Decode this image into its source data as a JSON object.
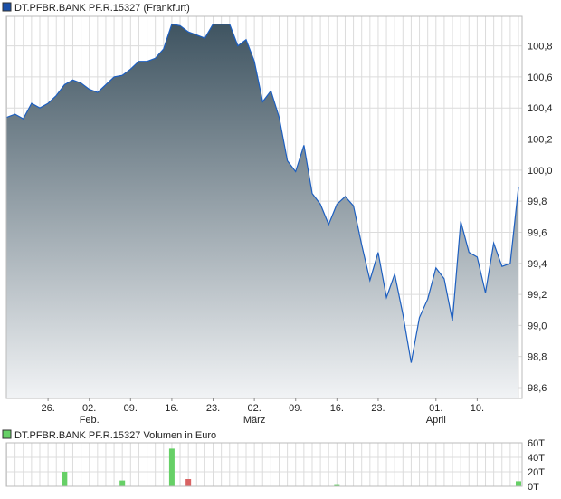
{
  "chart_data": [
    {
      "type": "area",
      "title": "DT.PFBR.BANK PF.R.15327 (Frankfurt)",
      "legend_color": "#1a4fa8",
      "line_color": "#1d5fc0",
      "fill_gradient": [
        "#3f5461",
        "#f1f3f5"
      ],
      "grid": true,
      "legend_placement": "top-left",
      "y_axis_side": "right",
      "ylim": [
        98.53,
        100.99
      ],
      "y_ticks": [
        "98,6",
        "98,8",
        "99,0",
        "99,2",
        "99,4",
        "99,6",
        "99,8",
        "100,0",
        "100,2",
        "100,4",
        "100,6",
        "100,8"
      ],
      "y_tick_values": [
        98.6,
        98.8,
        99.0,
        99.2,
        99.4,
        99.6,
        99.8,
        100.0,
        100.2,
        100.4,
        100.6,
        100.8
      ],
      "x_ticks": [
        {
          "label": "26.",
          "index": 5
        },
        {
          "label": "02.",
          "index": 10,
          "month": "Feb."
        },
        {
          "label": "09.",
          "index": 15
        },
        {
          "label": "16.",
          "index": 20
        },
        {
          "label": "23.",
          "index": 25
        },
        {
          "label": "02.",
          "index": 30,
          "month": "März"
        },
        {
          "label": "09.",
          "index": 35
        },
        {
          "label": "16.",
          "index": 40
        },
        {
          "label": "23.",
          "index": 45
        },
        {
          "label": "01.",
          "index": 52,
          "month": "April"
        },
        {
          "label": "10.",
          "index": 57
        }
      ],
      "values": [
        100.34,
        100.36,
        100.33,
        100.43,
        100.4,
        100.43,
        100.48,
        100.55,
        100.58,
        100.56,
        100.52,
        100.5,
        100.55,
        100.6,
        100.61,
        100.65,
        100.7,
        100.7,
        100.72,
        100.78,
        100.94,
        100.93,
        100.89,
        100.87,
        100.85,
        100.94,
        100.94,
        100.94,
        100.8,
        100.84,
        100.7,
        100.44,
        100.51,
        100.34,
        100.06,
        99.99,
        100.16,
        99.85,
        99.78,
        99.65,
        99.78,
        99.83,
        99.77,
        99.52,
        99.29,
        99.47,
        99.18,
        99.33,
        99.07,
        98.76,
        99.05,
        99.17,
        99.37,
        99.3,
        99.03,
        99.67,
        99.47,
        99.44,
        99.21,
        99.53,
        99.38,
        99.4,
        99.89
      ]
    },
    {
      "type": "bar",
      "title": "DT.PFBR.BANK PF.R.15327 Volumen in Euro",
      "legend_color": "#66d066",
      "ylim": [
        0,
        60
      ],
      "y_ticks": [
        "0T",
        "20T",
        "40T",
        "60T"
      ],
      "y_tick_values": [
        0,
        20,
        40,
        60
      ],
      "up_color": "#66d066",
      "down_color": "#d96363",
      "bars": [
        {
          "index": 7,
          "value": 20,
          "direction": "up"
        },
        {
          "index": 14,
          "value": 8,
          "direction": "up"
        },
        {
          "index": 20,
          "value": 52,
          "direction": "up"
        },
        {
          "index": 22,
          "value": 10,
          "direction": "down"
        },
        {
          "index": 40,
          "value": 3,
          "direction": "up"
        },
        {
          "index": 62,
          "value": 7,
          "direction": "up"
        }
      ]
    }
  ]
}
